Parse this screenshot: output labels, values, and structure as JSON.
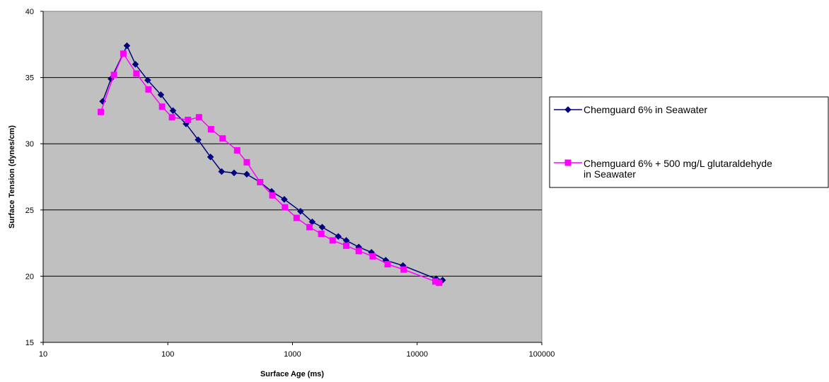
{
  "chart_data": {
    "type": "line",
    "xlabel": "Surface Age (ms)",
    "ylabel": "Surface Tension (dynes/cm)",
    "x_scale": "log",
    "xlim": [
      10,
      100000
    ],
    "ylim": [
      15,
      40
    ],
    "x_ticks": [
      "10",
      "100",
      "1000",
      "10000",
      "100000"
    ],
    "y_ticks": [
      "15",
      "20",
      "25",
      "30",
      "35",
      "40"
    ],
    "grid": "horizontal",
    "legend_position": "right",
    "plot_background": "#c0c0c0",
    "series": [
      {
        "name": "Chemguard 6% in Seawater",
        "color": "#000080",
        "marker": "diamond",
        "points": [
          [
            30,
            33.2
          ],
          [
            35,
            34.9
          ],
          [
            47,
            37.4
          ],
          [
            55,
            36.0
          ],
          [
            69,
            34.8
          ],
          [
            88,
            33.7
          ],
          [
            110,
            32.5
          ],
          [
            140,
            31.5
          ],
          [
            175,
            30.3
          ],
          [
            220,
            29.0
          ],
          [
            270,
            27.9
          ],
          [
            340,
            27.8
          ],
          [
            430,
            27.7
          ],
          [
            550,
            27.1
          ],
          [
            680,
            26.4
          ],
          [
            860,
            25.8
          ],
          [
            1160,
            24.9
          ],
          [
            1440,
            24.1
          ],
          [
            1730,
            23.7
          ],
          [
            2330,
            23.0
          ],
          [
            2700,
            22.7
          ],
          [
            3400,
            22.2
          ],
          [
            4300,
            21.8
          ],
          [
            5600,
            21.2
          ],
          [
            7700,
            20.8
          ],
          [
            14200,
            19.8
          ],
          [
            16000,
            19.7
          ]
        ]
      },
      {
        "name": "Chemguard 6% + 500 mg/L glutaraldehyde in Seawater",
        "color": "#ff00ff",
        "marker": "square",
        "points": [
          [
            29,
            32.4
          ],
          [
            37,
            35.2
          ],
          [
            44,
            36.8
          ],
          [
            56,
            35.3
          ],
          [
            70,
            34.1
          ],
          [
            90,
            32.8
          ],
          [
            108,
            32.0
          ],
          [
            145,
            31.8
          ],
          [
            178,
            32.0
          ],
          [
            222,
            31.1
          ],
          [
            275,
            30.4
          ],
          [
            360,
            29.5
          ],
          [
            430,
            28.6
          ],
          [
            550,
            27.1
          ],
          [
            690,
            26.1
          ],
          [
            870,
            25.2
          ],
          [
            1080,
            24.4
          ],
          [
            1370,
            23.7
          ],
          [
            1700,
            23.2
          ],
          [
            2100,
            22.7
          ],
          [
            2700,
            22.3
          ],
          [
            3400,
            21.9
          ],
          [
            4400,
            21.5
          ],
          [
            5800,
            20.9
          ],
          [
            7800,
            20.5
          ],
          [
            14000,
            19.6
          ],
          [
            15000,
            19.5
          ]
        ]
      }
    ]
  }
}
